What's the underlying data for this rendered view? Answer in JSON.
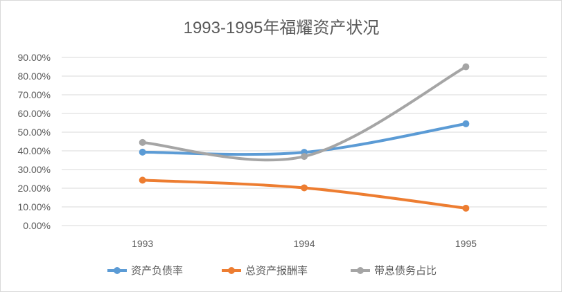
{
  "chart_data": {
    "type": "line",
    "title": "1993-1995年福耀资产状况",
    "xlabel": "",
    "ylabel": "",
    "categories": [
      "1993",
      "1994",
      "1995"
    ],
    "y_ticks": [
      "0.00%",
      "10.00%",
      "20.00%",
      "30.00%",
      "40.00%",
      "50.00%",
      "60.00%",
      "70.00%",
      "80.00%",
      "90.00%"
    ],
    "ylim": [
      0,
      90
    ],
    "grid": true,
    "smooth": true,
    "legend_position": "bottom",
    "series": [
      {
        "name": "资产负债率",
        "color": "#5B9BD5",
        "values": [
          39.3,
          39.2,
          54.5
        ]
      },
      {
        "name": "总资产报酬率",
        "color": "#ED7D31",
        "values": [
          24.3,
          20.2,
          9.3
        ]
      },
      {
        "name": "带息债务占比",
        "color": "#A5A5A5",
        "values": [
          44.5,
          37.0,
          85.0
        ]
      }
    ]
  }
}
